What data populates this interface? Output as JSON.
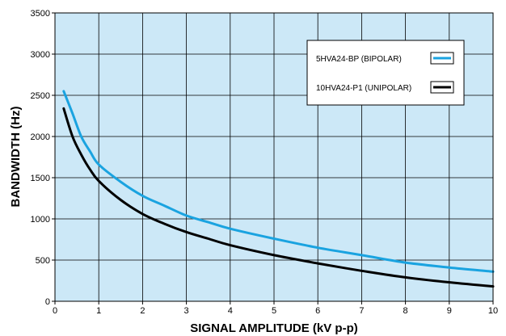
{
  "chart_data": {
    "type": "line",
    "xlabel": "SIGNAL AMPLITUDE (kV p-p)",
    "ylabel": "BANDWIDTH (Hz)",
    "xlim": [
      0,
      10
    ],
    "ylim": [
      0,
      3500
    ],
    "xticks": [
      "0",
      "1",
      "2",
      "3",
      "4",
      "5",
      "6",
      "7",
      "8",
      "9",
      "10"
    ],
    "yticks": [
      "0",
      "500",
      "1000",
      "1500",
      "2000",
      "2500",
      "3000",
      "3500"
    ],
    "grid": true,
    "legend_position": "top-right",
    "plot_background": "#cce8f7",
    "series": [
      {
        "name": "5HVA24-BP (BIPOLAR)",
        "color": "#1aa3e0",
        "x": [
          0.2,
          0.4,
          0.6,
          0.8,
          1.0,
          1.5,
          2.0,
          2.5,
          3.0,
          3.5,
          4.0,
          5.0,
          6.0,
          7.0,
          8.0,
          9.0,
          10.0
        ],
        "y": [
          2550,
          2280,
          2000,
          1820,
          1660,
          1450,
          1280,
          1160,
          1040,
          960,
          880,
          760,
          650,
          560,
          470,
          410,
          360
        ]
      },
      {
        "name": "10HVA24-P1 (UNIPOLAR)",
        "color": "#000000",
        "x": [
          0.2,
          0.4,
          0.6,
          0.8,
          1.0,
          1.5,
          2.0,
          2.5,
          3.0,
          3.5,
          4.0,
          5.0,
          6.0,
          7.0,
          8.0,
          9.0,
          10.0
        ],
        "y": [
          2340,
          2000,
          1780,
          1600,
          1460,
          1230,
          1060,
          940,
          840,
          760,
          680,
          560,
          460,
          370,
          290,
          230,
          180
        ]
      }
    ]
  }
}
